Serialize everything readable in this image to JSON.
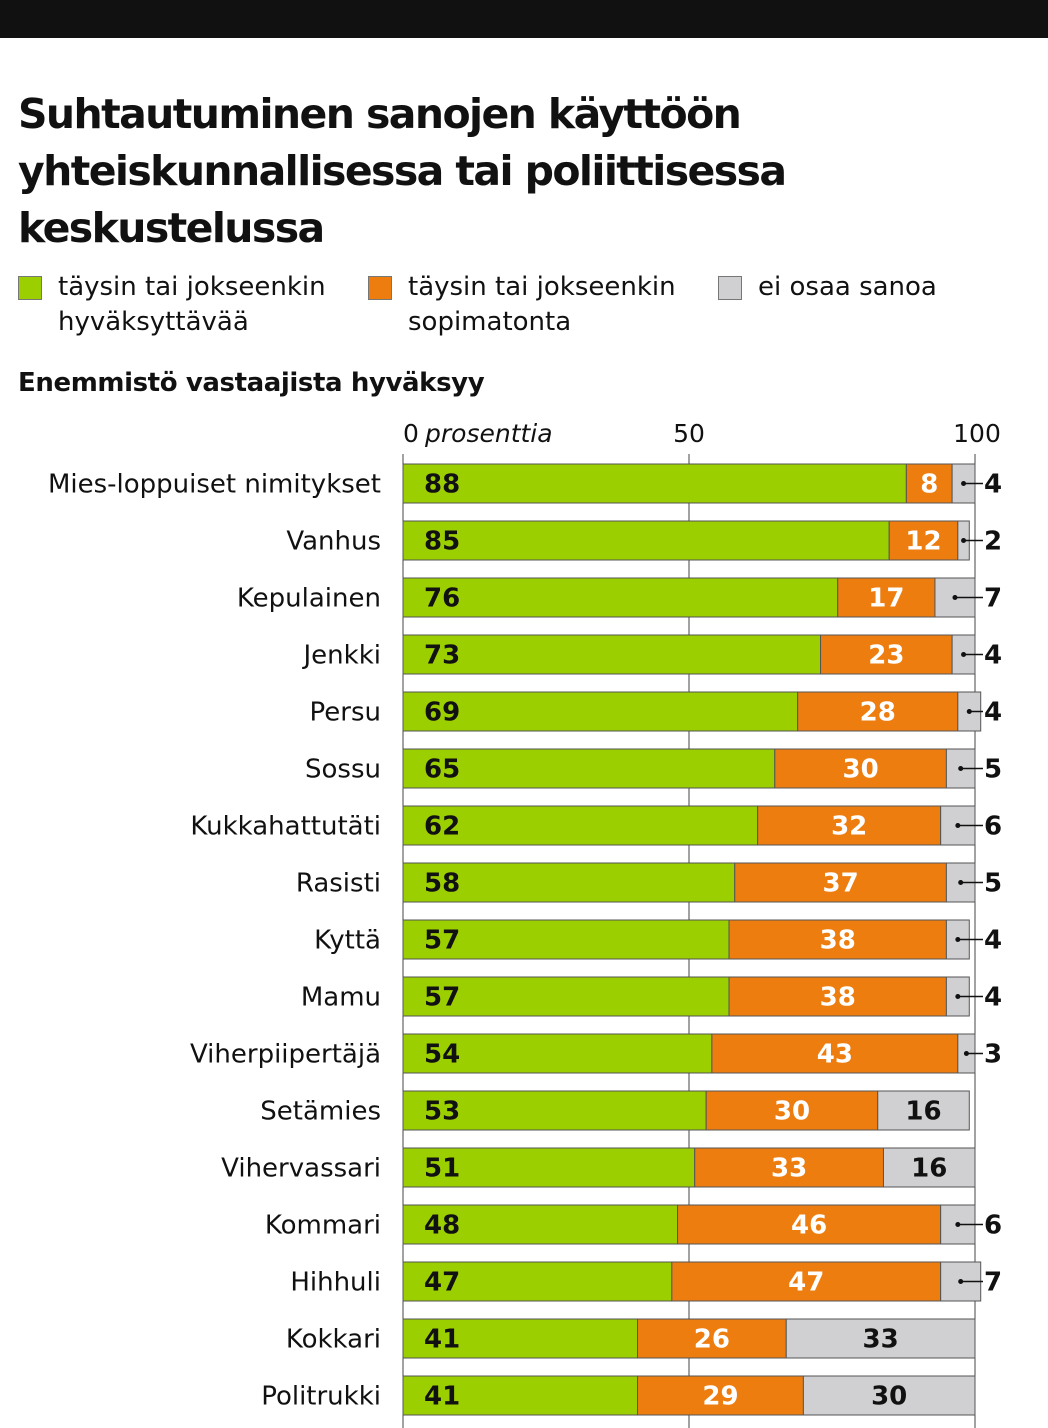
{
  "title": "Suhtautuminen sanojen käyttöön yhteiskunnallisessa tai poliittisessa keskustelussa",
  "legend": [
    {
      "label_line1": "täysin tai jokseenkin",
      "label_line2": "hyväksyttävää",
      "color": "#9ccf00"
    },
    {
      "label_line1": "täysin tai jokseenkin",
      "label_line2": "sopimatonta",
      "color": "#ee7d0f"
    },
    {
      "label_line1": "ei osaa sanoa",
      "label_line2": "",
      "color": "#d0d0d2"
    }
  ],
  "subtitle": "Enemmistö vastaajista hyväksyy",
  "colors": {
    "accept": "#9ccf00",
    "reject": "#ee7d0f",
    "unknown": "#d0d0d2",
    "text": "#111111",
    "topbar": "#111111"
  },
  "chart_data": {
    "type": "bar",
    "orientation": "horizontal",
    "stacked": true,
    "unit_label": "prosenttia",
    "xlim": [
      0,
      100
    ],
    "ticks": [
      0,
      50,
      100
    ],
    "grid": true,
    "categories": [
      "Mies-loppuiset nimitykset",
      "Vanhus",
      "Kepulainen",
      "Jenkki",
      "Persu",
      "Sossu",
      "Kukkahattutäti",
      "Rasisti",
      "Kyttä",
      "Mamu",
      "Viherpiipertäjä",
      "Setämies",
      "Vihervassari",
      "Kommari",
      "Hihhuli",
      "Kokkari",
      "Politrukki"
    ],
    "series": [
      {
        "name": "täysin tai jokseenkin hyväksyttävää",
        "color": "#9ccf00",
        "values": [
          88,
          85,
          76,
          73,
          69,
          65,
          62,
          58,
          57,
          57,
          54,
          53,
          51,
          48,
          47,
          41,
          41
        ]
      },
      {
        "name": "täysin tai jokseenkin sopimatonta",
        "color": "#ee7d0f",
        "values": [
          8,
          12,
          17,
          23,
          28,
          30,
          32,
          37,
          38,
          38,
          43,
          30,
          33,
          46,
          47,
          26,
          29
        ]
      },
      {
        "name": "ei osaa sanoa",
        "color": "#d0d0d2",
        "values": [
          4,
          2,
          7,
          4,
          4,
          5,
          6,
          5,
          4,
          4,
          3,
          16,
          16,
          6,
          7,
          33,
          30
        ]
      }
    ]
  }
}
